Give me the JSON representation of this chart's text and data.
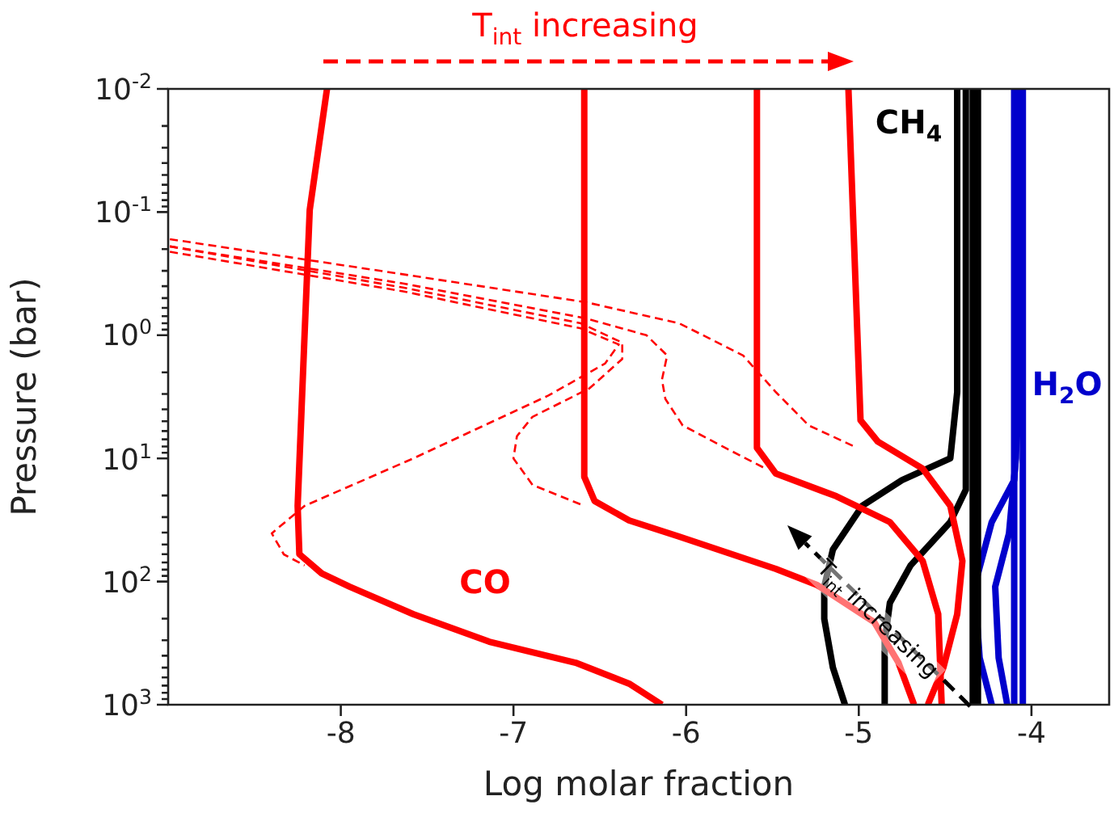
{
  "chart_data": {
    "type": "line",
    "xlabel": "Log molar fraction",
    "ylabel": "Pressure (bar)",
    "log": "y",
    "marker": "none",
    "legend": false,
    "xlim": [
      -9,
      -3.55
    ],
    "xticks": [
      -8,
      -7,
      -6,
      -5,
      -4
    ],
    "ylim": [
      1000,
      0.01
    ],
    "yticks": [
      {
        "value": 0.01,
        "label": "10$^{-2}$"
      },
      {
        "value": 0.02,
        "label": null
      },
      {
        "value": 0.03,
        "label": null
      },
      {
        "value": 0.04,
        "label": null
      },
      {
        "value": 0.05,
        "label": null
      },
      {
        "value": 0.06,
        "label": null
      },
      {
        "value": 0.07,
        "label": null
      },
      {
        "value": 0.08,
        "label": null
      },
      {
        "value": 0.09,
        "label": null
      },
      {
        "value": 0.1,
        "label": "10$^{-1}$"
      },
      {
        "value": 0.2,
        "label": null
      },
      {
        "value": 0.3,
        "label": null
      },
      {
        "value": 0.4,
        "label": null
      },
      {
        "value": 0.5,
        "label": null
      },
      {
        "value": 0.6,
        "label": null
      },
      {
        "value": 0.7,
        "label": null
      },
      {
        "value": 0.8,
        "label": null
      },
      {
        "value": 0.9,
        "label": null
      },
      {
        "value": 1,
        "label": "10$^{0}$"
      },
      {
        "value": 2,
        "label": null
      },
      {
        "value": 3,
        "label": null
      },
      {
        "value": 4,
        "label": null
      },
      {
        "value": 5,
        "label": null
      },
      {
        "value": 6,
        "label": null
      },
      {
        "value": 7,
        "label": null
      },
      {
        "value": 8,
        "label": null
      },
      {
        "value": 9,
        "label": null
      },
      {
        "value": 10,
        "label": "10$^{1}$"
      },
      {
        "value": 20,
        "label": null
      },
      {
        "value": 30,
        "label": null
      },
      {
        "value": 40,
        "label": null
      },
      {
        "value": 50,
        "label": null
      },
      {
        "value": 60,
        "label": null
      },
      {
        "value": 70,
        "label": null
      },
      {
        "value": 80,
        "label": null
      },
      {
        "value": 90,
        "label": null
      },
      {
        "value": 100,
        "label": "10$^{2}$"
      },
      {
        "value": 200,
        "label": null
      },
      {
        "value": 300,
        "label": null
      },
      {
        "value": 400,
        "label": null
      },
      {
        "value": 500,
        "label": null
      },
      {
        "value": 600,
        "label": null
      },
      {
        "value": 700,
        "label": null
      },
      {
        "value": 800,
        "label": null
      },
      {
        "value": 900,
        "label": null
      },
      {
        "value": 1000,
        "label": "10$^{3}$"
      }
    ],
    "annotations": [
      "T$_{int}$ increasing",
      {
        "text": "T$_{int}$ increasing",
        "x": -4.91,
        "y": 214
      },
      "CO",
      "CH$_{4}$",
      "H$_{2}$O"
    ],
    "series": [
      {
        "color": "#ff0000",
        "line_style": "dashed",
        "x": [
          -8.99,
          -7.64,
          -6.61,
          -6.39,
          -6.47,
          -6.8,
          -7.58,
          -8.21,
          -8.4,
          -8.33,
          -8.21
        ],
        "values": [
          0.21,
          0.44,
          0.88,
          1.19,
          1.7,
          3.1,
          10,
          24.3,
          40.6,
          60.2,
          74
        ]
      },
      {
        "color": "#ff0000",
        "line_style": "dashed",
        "x": [
          -8.99,
          -7.64,
          -6.61,
          -6.37,
          -6.37,
          -6.56,
          -6.89,
          -6.98,
          -7.0,
          -6.89,
          -6.59
        ],
        "values": [
          0.19,
          0.41,
          0.8,
          1.15,
          1.56,
          2.7,
          4.6,
          6.6,
          10,
          16.4,
          24.3
        ]
      },
      {
        "color": "#ff0000",
        "line_style": "dashed",
        "x": [
          -8.99,
          -7.64,
          -6.58,
          -6.23,
          -6.11,
          -6.14,
          -6.12,
          -6.02,
          -5.76,
          -5.54
        ],
        "values": [
          0.19,
          0.38,
          0.73,
          1.0,
          1.46,
          2.3,
          3.3,
          5.4,
          8.4,
          12.1
        ]
      },
      {
        "color": "#ff0000",
        "line_style": "dashed",
        "x": [
          -8.99,
          -7.64,
          -6.58,
          -6.04,
          -5.67,
          -5.48,
          -5.29,
          -5.01
        ],
        "values": [
          0.166,
          0.32,
          0.54,
          0.8,
          1.46,
          2.9,
          5.4,
          8.2
        ]
      },
      {
        "color": "#ff0000",
        "line_style": "solid",
        "x": [
          -8.08,
          -8.18,
          -8.21,
          -8.25,
          -8.24,
          -8.11,
          -7.95,
          -7.58,
          -7.14,
          -6.64,
          -6.33,
          -6.14
        ],
        "values": [
          0.01,
          0.096,
          1,
          24.3,
          60,
          86,
          110,
          184,
          308,
          456,
          675,
          1000
        ]
      },
      {
        "color": "#ff0000",
        "line_style": "solid",
        "x": [
          -6.59,
          -6.59,
          -6.53,
          -6.33,
          -6.04,
          -5.76,
          -5.48,
          -5.24,
          -4.91,
          -4.77,
          -4.68
        ],
        "values": [
          0.01,
          14.1,
          22.2,
          31.9,
          43.2,
          58.4,
          79,
          107,
          214,
          456,
          1000
        ]
      },
      {
        "color": "#ff0000",
        "line_style": "solid",
        "x": [
          -5.59,
          -5.59,
          -5.48,
          -5.13,
          -4.82,
          -4.63,
          -4.54,
          -4.52
        ],
        "values": [
          0.01,
          8.2,
          13.3,
          20.3,
          32.9,
          68,
          184,
          1000
        ]
      },
      {
        "color": "#ff0000",
        "line_style": "solid",
        "x": [
          -5.06,
          -4.99,
          -4.89,
          -4.63,
          -4.47,
          -4.4,
          -4.43,
          -4.51,
          -4.6
        ],
        "values": [
          0.01,
          4.9,
          7.3,
          12.1,
          24.3,
          68,
          184,
          499,
          1000
        ]
      },
      {
        "color": "#000000",
        "line_style": "solid",
        "x": [
          -4.43,
          -4.43,
          -4.47,
          -4.75,
          -4.98,
          -5.15,
          -5.2,
          -5.2,
          -5.15,
          -5.08
        ],
        "values": [
          0.01,
          2.9,
          10,
          15,
          24.3,
          55,
          110,
          201,
          499,
          1000
        ]
      },
      {
        "color": "#000000",
        "line_style": "solid",
        "x": [
          -4.38,
          -4.38,
          -4.47,
          -4.7,
          -4.82,
          -4.85,
          -4.85
        ],
        "values": [
          0.01,
          18,
          32.9,
          74,
          149,
          308,
          1000
        ]
      },
      {
        "color": "#000000",
        "line_style": "solid",
        "x": [
          -4.34,
          -4.34
        ],
        "values": [
          0.01,
          1000
        ]
      },
      {
        "color": "#000000",
        "line_style": "solid",
        "x": [
          -4.31,
          -4.31
        ],
        "values": [
          0.01,
          1000
        ]
      },
      {
        "color": "#0000cc",
        "line_style": "solid",
        "x": [
          -4.05,
          -4.05
        ],
        "values": [
          0.01,
          1000
        ]
      },
      {
        "color": "#0000cc",
        "line_style": "solid",
        "x": [
          -4.08,
          -4.08,
          -4.1,
          -4.23,
          -4.33,
          -4.3,
          -4.23
        ],
        "values": [
          0.01,
          5.4,
          15,
          32.9,
          110,
          416,
          1000
        ]
      },
      {
        "color": "#0000cc",
        "line_style": "solid",
        "x": [
          -4.09,
          -4.09,
          -4.13,
          -4.21,
          -4.19,
          -4.14
        ],
        "values": [
          0.01,
          10,
          40.6,
          110,
          416,
          1000
        ]
      },
      {
        "color": "#0000cc",
        "line_style": "solid",
        "x": [
          -4.1,
          -4.1
        ],
        "values": [
          0.01,
          1000
        ]
      }
    ]
  }
}
